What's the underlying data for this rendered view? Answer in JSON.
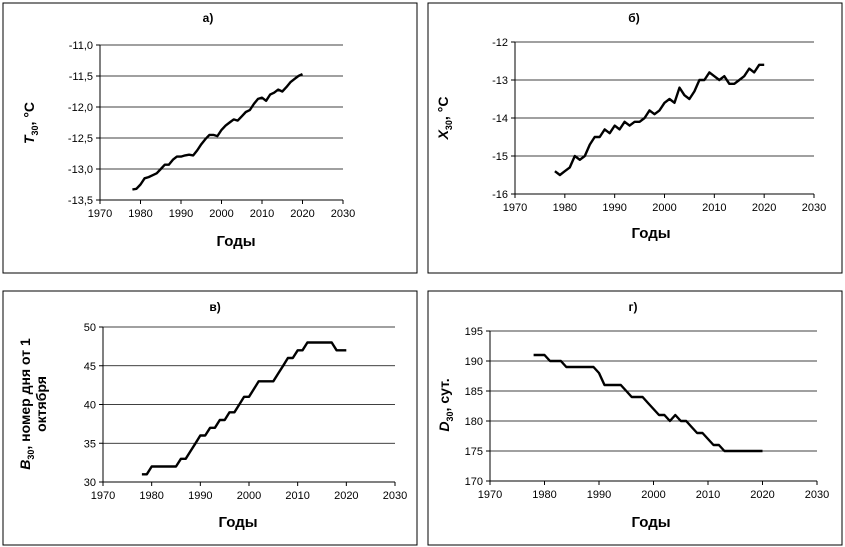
{
  "chart_data": [
    {
      "type": "line",
      "title": "а)",
      "xlabel": "Годы",
      "ylabel": {
        "main": "T",
        "sub": "30",
        "rest": ", °C"
      },
      "xlim": [
        1970,
        2030
      ],
      "xticks": [
        1970,
        1980,
        1990,
        2000,
        2010,
        2020,
        2030
      ],
      "ylim": [
        -13.5,
        -11.0
      ],
      "yticks": [
        "-13,5",
        "-13,0",
        "-12,5",
        "-12,0",
        "-11,5",
        "-11,0"
      ],
      "ytick_values": [
        -13.5,
        -13.0,
        -12.5,
        -12.0,
        -11.5,
        -11.0
      ],
      "grid": "horizontal",
      "series": [
        {
          "x": [
            1978,
            1979,
            1980,
            1981,
            1982,
            1983,
            1984,
            1985,
            1986,
            1987,
            1988,
            1989,
            1990,
            1991,
            1992,
            1993,
            1994,
            1995,
            1996,
            1997,
            1998,
            1999,
            2000,
            2001,
            2002,
            2003,
            2004,
            2005,
            2006,
            2007,
            2008,
            2009,
            2010,
            2011,
            2012,
            2013,
            2014,
            2015,
            2016,
            2017,
            2018,
            2019,
            2020
          ],
          "y": [
            -13.33,
            -13.32,
            -13.25,
            -13.15,
            -13.13,
            -13.1,
            -13.07,
            -13.0,
            -12.93,
            -12.93,
            -12.85,
            -12.8,
            -12.8,
            -12.78,
            -12.77,
            -12.78,
            -12.7,
            -12.6,
            -12.52,
            -12.45,
            -12.45,
            -12.47,
            -12.37,
            -12.3,
            -12.25,
            -12.2,
            -12.22,
            -12.15,
            -12.08,
            -12.05,
            -11.95,
            -11.87,
            -11.85,
            -11.9,
            -11.8,
            -11.77,
            -11.72,
            -11.75,
            -11.68,
            -11.6,
            -11.55,
            -11.5,
            -11.47
          ]
        }
      ]
    },
    {
      "type": "line",
      "title": "б)",
      "xlabel": "Годы",
      "ylabel": {
        "main": "X",
        "sub": "30",
        "rest": ", °C"
      },
      "xlim": [
        1970,
        2030
      ],
      "xticks": [
        1970,
        1980,
        1990,
        2000,
        2010,
        2020,
        2030
      ],
      "ylim": [
        -16,
        -12
      ],
      "yticks": [
        "-16",
        "-15",
        "-14",
        "-13",
        "-12"
      ],
      "ytick_values": [
        -16,
        -15,
        -14,
        -13,
        -12
      ],
      "grid": "horizontal",
      "series": [
        {
          "x": [
            1978,
            1979,
            1980,
            1981,
            1982,
            1983,
            1984,
            1985,
            1986,
            1987,
            1988,
            1989,
            1990,
            1991,
            1992,
            1993,
            1994,
            1995,
            1996,
            1997,
            1998,
            1999,
            2000,
            2001,
            2002,
            2003,
            2004,
            2005,
            2006,
            2007,
            2008,
            2009,
            2010,
            2011,
            2012,
            2013,
            2014,
            2015,
            2016,
            2017,
            2018,
            2019,
            2020
          ],
          "y": [
            -15.4,
            -15.5,
            -15.4,
            -15.3,
            -15.0,
            -15.1,
            -15.0,
            -14.7,
            -14.5,
            -14.5,
            -14.3,
            -14.4,
            -14.2,
            -14.3,
            -14.1,
            -14.2,
            -14.1,
            -14.1,
            -14.0,
            -13.8,
            -13.9,
            -13.8,
            -13.6,
            -13.5,
            -13.6,
            -13.2,
            -13.4,
            -13.5,
            -13.3,
            -13.0,
            -13.0,
            -12.8,
            -12.9,
            -13.0,
            -12.9,
            -13.1,
            -13.1,
            -13.0,
            -12.9,
            -12.7,
            -12.8,
            -12.6,
            -12.6
          ]
        }
      ]
    },
    {
      "type": "line",
      "title": "в)",
      "xlabel": "Годы",
      "ylabel": {
        "main": "B",
        "sub": "30",
        "rest": ", номер дня от 1",
        "line2": "октября"
      },
      "xlim": [
        1970,
        2030
      ],
      "xticks": [
        1970,
        1980,
        1990,
        2000,
        2010,
        2020,
        2030
      ],
      "ylim": [
        30,
        50
      ],
      "yticks": [
        "30",
        "35",
        "40",
        "45",
        "50"
      ],
      "ytick_values": [
        30,
        35,
        40,
        45,
        50
      ],
      "grid": "horizontal",
      "series": [
        {
          "x": [
            1978,
            1979,
            1980,
            1981,
            1982,
            1983,
            1984,
            1985,
            1986,
            1987,
            1988,
            1989,
            1990,
            1991,
            1992,
            1993,
            1994,
            1995,
            1996,
            1997,
            1998,
            1999,
            2000,
            2001,
            2002,
            2003,
            2004,
            2005,
            2006,
            2007,
            2008,
            2009,
            2010,
            2011,
            2012,
            2013,
            2014,
            2015,
            2016,
            2017,
            2018,
            2019,
            2020
          ],
          "y": [
            31,
            31,
            32,
            32,
            32,
            32,
            32,
            32,
            33,
            33,
            34,
            35,
            36,
            36,
            37,
            37,
            38,
            38,
            39,
            39,
            40,
            41,
            41,
            42,
            43,
            43,
            43,
            43,
            44,
            45,
            46,
            46,
            47,
            47,
            48,
            48,
            48,
            48,
            48,
            48,
            47,
            47,
            47
          ]
        }
      ]
    },
    {
      "type": "line",
      "title": "г)",
      "xlabel": "Годы",
      "ylabel": {
        "main": "D",
        "sub": "30",
        "rest": ", сут."
      },
      "xlim": [
        1970,
        2030
      ],
      "xticks": [
        1970,
        1980,
        1990,
        2000,
        2010,
        2020,
        2030
      ],
      "ylim": [
        170,
        195
      ],
      "yticks": [
        "170",
        "175",
        "180",
        "185",
        "190",
        "195"
      ],
      "ytick_values": [
        170,
        175,
        180,
        185,
        190,
        195
      ],
      "grid": "horizontal",
      "series": [
        {
          "x": [
            1978,
            1979,
            1980,
            1981,
            1982,
            1983,
            1984,
            1985,
            1986,
            1987,
            1988,
            1989,
            1990,
            1991,
            1992,
            1993,
            1994,
            1995,
            1996,
            1997,
            1998,
            1999,
            2000,
            2001,
            2002,
            2003,
            2004,
            2005,
            2006,
            2007,
            2008,
            2009,
            2010,
            2011,
            2012,
            2013,
            2014,
            2015,
            2016,
            2017,
            2018,
            2019,
            2020
          ],
          "y": [
            191,
            191,
            191,
            190,
            190,
            190,
            189,
            189,
            189,
            189,
            189,
            189,
            188,
            186,
            186,
            186,
            186,
            185,
            184,
            184,
            184,
            183,
            182,
            181,
            181,
            180,
            181,
            180,
            180,
            179,
            178,
            178,
            177,
            176,
            176,
            175,
            175,
            175,
            175,
            175,
            175,
            175,
            175
          ]
        }
      ]
    }
  ]
}
